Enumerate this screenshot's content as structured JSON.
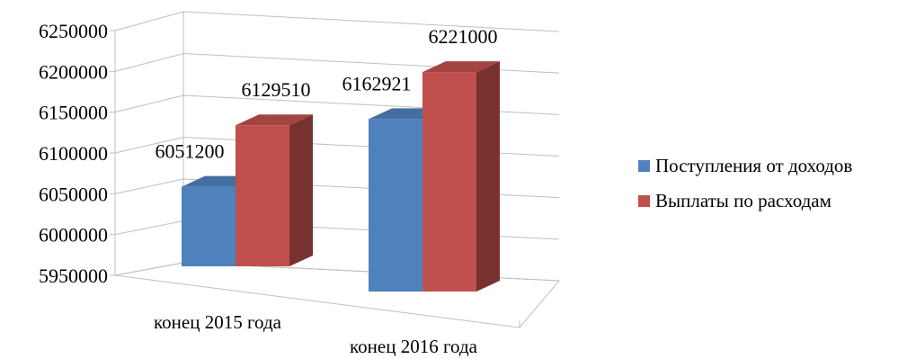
{
  "chart_data": {
    "type": "bar",
    "style": "3d-clustered-column",
    "categories": [
      "конец 2015 года",
      "конец 2016 года"
    ],
    "series": [
      {
        "name": "Поступления от доходов",
        "values": [
          6051200,
          6162921
        ],
        "color": "#4f81bd"
      },
      {
        "name": "Выплаты по расходам",
        "values": [
          6129510,
          6221000
        ],
        "color": "#c0504d"
      }
    ],
    "data_labels": [
      [
        "6051200",
        "6162921"
      ],
      [
        "6129510",
        "6221000"
      ]
    ],
    "ylim": [
      5950000,
      6250000
    ],
    "yticks": [
      5950000,
      6000000,
      6050000,
      6100000,
      6150000,
      6200000,
      6250000
    ],
    "ytick_labels": [
      "5950000",
      "6000000",
      "6050000",
      "6100000",
      "6150000",
      "6200000",
      "6250000"
    ],
    "grid": true,
    "legend_position": "right",
    "title": "",
    "xlabel": "",
    "ylabel": ""
  }
}
